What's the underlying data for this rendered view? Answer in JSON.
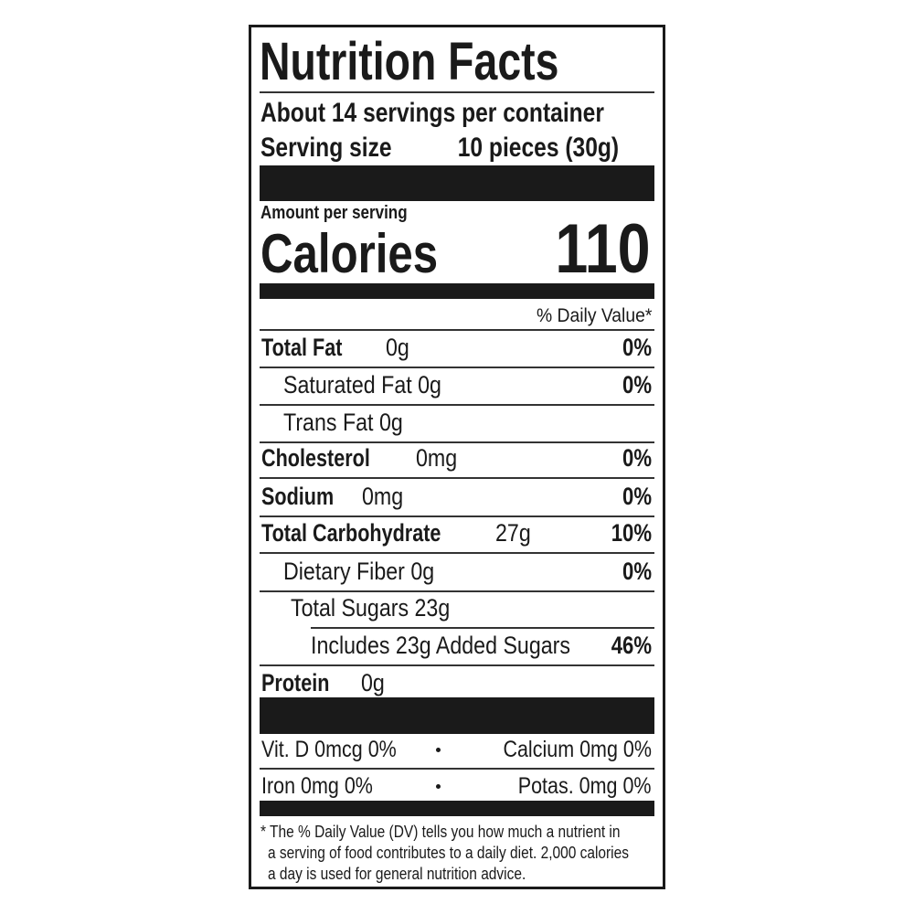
{
  "header": {
    "title": "Nutrition Facts",
    "servings": "About 14 servings per container",
    "serving_size_label": "Serving size",
    "serving_size": "10 pieces (30g)"
  },
  "calories": {
    "label_small": "Amount per serving",
    "label": "Calories",
    "value": 110
  },
  "dv_header": "% Daily Value*",
  "rows": [
    {
      "name": "Total Fat",
      "amount": "0g",
      "dv": "0%"
    },
    {
      "name": "Saturated Fat 0g",
      "dv": "0%"
    },
    {
      "name": "Trans Fat 0g"
    },
    {
      "name": "Cholesterol",
      "amount": "0mg",
      "dv": "0%"
    },
    {
      "name": "Sodium",
      "amount": "0mg",
      "dv": "0%"
    },
    {
      "name": "Total Carbohydrate",
      "amount": "27g",
      "dv": "10%"
    },
    {
      "name": "Dietary Fiber 0g",
      "dv": "0%"
    },
    {
      "name": "Total Sugars 23g"
    },
    {
      "name": "Includes 23g Added Sugars",
      "dv": "46%"
    },
    {
      "name": "Protein",
      "amount": "0g"
    }
  ],
  "micros": [
    [
      "Vit. D 0mcg 0%",
      "Calcium 0mg 0%"
    ],
    [
      "Iron 0mg 0%",
      "Potas. 0mg 0%"
    ]
  ],
  "footnote": [
    "* The % Daily Value (DV) tells you how much a nutrient in",
    "a serving of food contributes to a daily diet. 2,000 calories",
    "a day is used for general nutrition advice."
  ]
}
